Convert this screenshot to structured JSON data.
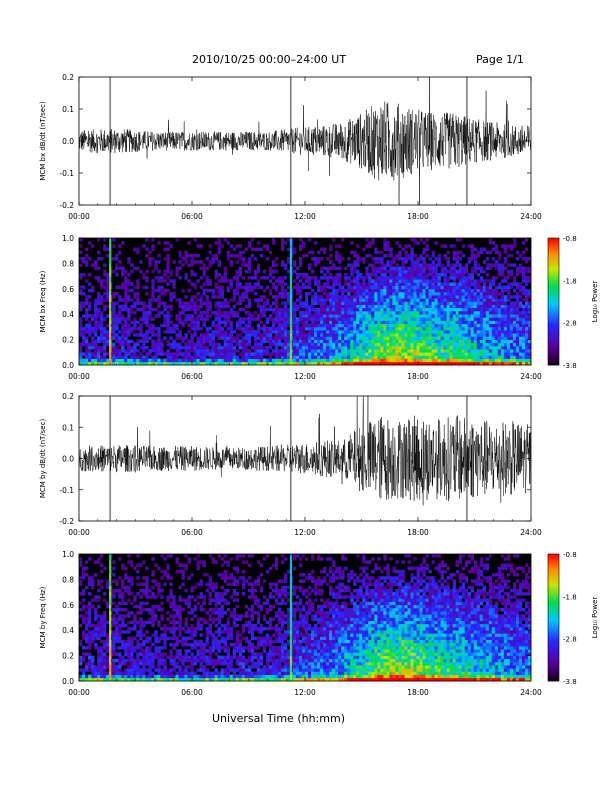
{
  "header": {
    "title": "2010/10/25  00:00–24:00 UT",
    "page": "Page 1/1"
  },
  "x_axis_title": "Universal Time (hh:mm)",
  "chart_data": [
    {
      "type": "line",
      "ylabel": "MCM bx dB/dt (nT/sec)",
      "xlim": [
        0,
        24
      ],
      "ylim": [
        -0.2,
        0.2
      ],
      "x_ticks": [
        "00:00",
        "06:00",
        "12:00",
        "18:00",
        "24:00"
      ],
      "y_ticks": [
        "-0.2",
        "-0.1",
        "0.0",
        "0.1",
        "0.2"
      ],
      "vertical_markers_hours": [
        1.65,
        11.25,
        20.6
      ],
      "envelope": {
        "x_hours": [
          0,
          2,
          4,
          6,
          8,
          10,
          12,
          13,
          14,
          15,
          16,
          17,
          18,
          19,
          20,
          21,
          22,
          23,
          24
        ],
        "amplitude": [
          0.035,
          0.04,
          0.03,
          0.03,
          0.03,
          0.03,
          0.045,
          0.05,
          0.06,
          0.09,
          0.13,
          0.12,
          0.1,
          0.09,
          0.09,
          0.07,
          0.06,
          0.05,
          0.05
        ]
      }
    },
    {
      "type": "heatmap",
      "ylabel": "MCM bx Freq (Hz)",
      "xlim": [
        0,
        24
      ],
      "ylim": [
        0,
        1.0
      ],
      "x_ticks": [
        "00:00",
        "06:00",
        "12:00",
        "18:00",
        "24:00"
      ],
      "y_ticks": [
        "0.0",
        "0.2",
        "0.4",
        "0.6",
        "0.8",
        "1.0"
      ],
      "colorbar": {
        "label": "Log₁₀ Power",
        "range": [
          -3.8,
          -0.8
        ],
        "ticks": [
          "-0.8",
          "-1.8",
          "-2.8",
          "-3.8"
        ]
      },
      "vertical_markers_hours": [
        1.65,
        11.25
      ],
      "activity_envelope": {
        "x_hours": [
          0,
          2,
          4,
          6,
          8,
          10,
          12,
          13,
          14,
          15,
          16,
          17,
          18,
          19,
          20,
          21,
          22,
          23,
          24
        ],
        "level": [
          0.25,
          0.25,
          0.2,
          0.2,
          0.25,
          0.25,
          0.35,
          0.4,
          0.5,
          0.65,
          0.8,
          0.85,
          0.8,
          0.7,
          0.7,
          0.6,
          0.55,
          0.45,
          0.4
        ]
      }
    },
    {
      "type": "line",
      "ylabel": "MCM by dB/dt (nT/sec)",
      "xlim": [
        0,
        24
      ],
      "ylim": [
        -0.2,
        0.2
      ],
      "x_ticks": [
        "00:00",
        "06:00",
        "12:00",
        "18:00",
        "24:00"
      ],
      "y_ticks": [
        "-0.2",
        "-0.1",
        "0.0",
        "0.1",
        "0.2"
      ],
      "vertical_markers_hours": [
        1.65,
        11.25,
        20.6
      ],
      "envelope": {
        "x_hours": [
          0,
          2,
          4,
          6,
          8,
          10,
          12,
          13,
          14,
          15,
          16,
          17,
          18,
          19,
          20,
          21,
          22,
          23,
          24
        ],
        "amplitude": [
          0.04,
          0.045,
          0.04,
          0.04,
          0.035,
          0.04,
          0.05,
          0.06,
          0.06,
          0.11,
          0.14,
          0.13,
          0.14,
          0.13,
          0.14,
          0.13,
          0.12,
          0.12,
          0.11
        ]
      }
    },
    {
      "type": "heatmap",
      "ylabel": "MCM by Freq (Hz)",
      "xlim": [
        0,
        24
      ],
      "ylim": [
        0,
        1.0
      ],
      "x_ticks": [
        "00:00",
        "06:00",
        "12:00",
        "18:00",
        "24:00"
      ],
      "y_ticks": [
        "0.0",
        "0.2",
        "0.4",
        "0.6",
        "0.8",
        "1.0"
      ],
      "colorbar": {
        "label": "Log₁₀ Power",
        "range": [
          -3.8,
          -0.8
        ],
        "ticks": [
          "-0.8",
          "-1.8",
          "-2.8",
          "-3.8"
        ]
      },
      "vertical_markers_hours": [
        1.65,
        11.25
      ],
      "activity_envelope": {
        "x_hours": [
          0,
          2,
          4,
          6,
          8,
          10,
          12,
          13,
          14,
          15,
          16,
          17,
          18,
          19,
          20,
          21,
          22,
          23,
          24
        ],
        "level": [
          0.25,
          0.25,
          0.2,
          0.2,
          0.25,
          0.25,
          0.35,
          0.4,
          0.5,
          0.65,
          0.8,
          0.85,
          0.8,
          0.7,
          0.7,
          0.6,
          0.55,
          0.45,
          0.4
        ]
      }
    }
  ]
}
